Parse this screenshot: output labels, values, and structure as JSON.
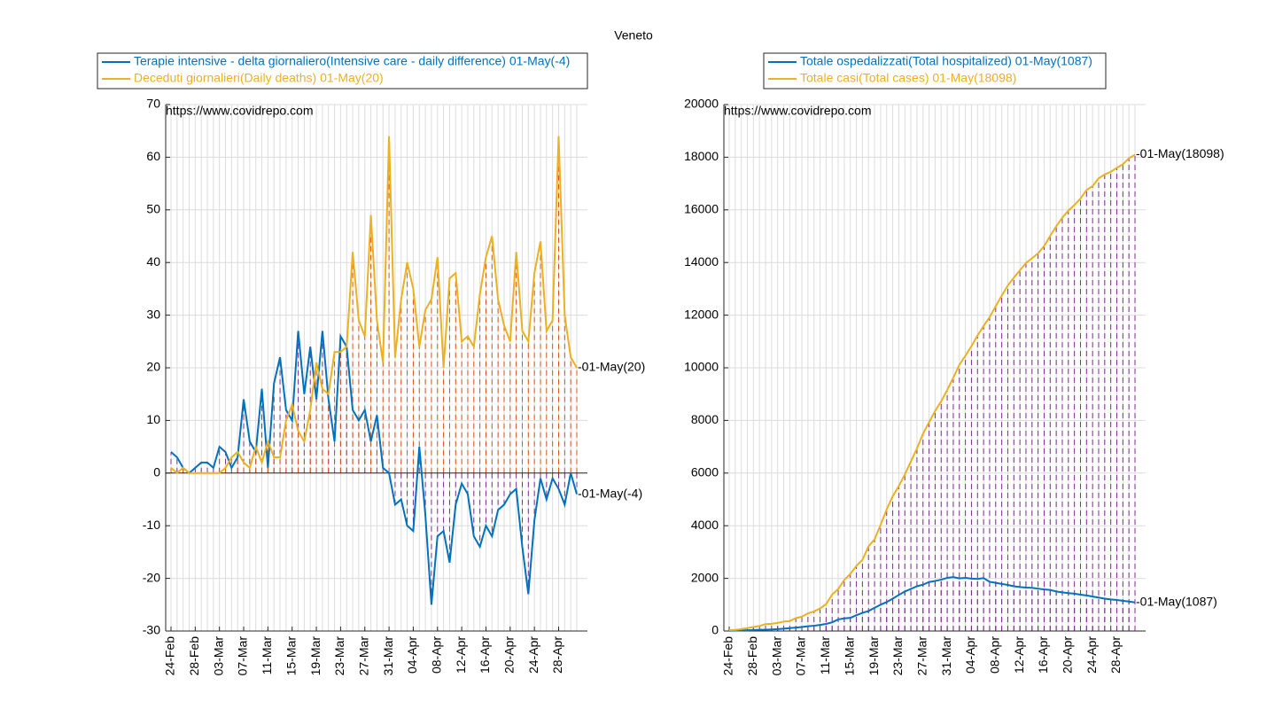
{
  "title": "Veneto",
  "chart_data": [
    {
      "type": "line",
      "source": "https://www.covidrepo.com",
      "categories": [
        "24-Feb",
        null,
        null,
        null,
        "28-Feb",
        null,
        null,
        null,
        "03-Mar",
        null,
        null,
        null,
        "07-Mar",
        null,
        null,
        null,
        "11-Mar",
        null,
        null,
        null,
        "15-Mar",
        null,
        null,
        null,
        "19-Mar",
        null,
        null,
        null,
        "23-Mar",
        null,
        null,
        null,
        "27-Mar",
        null,
        null,
        null,
        "31-Mar",
        null,
        null,
        null,
        "04-Apr",
        null,
        null,
        null,
        "08-Apr",
        null,
        null,
        null,
        "12-Apr",
        null,
        null,
        null,
        "16-Apr",
        null,
        null,
        null,
        "20-Apr",
        null,
        null,
        null,
        "24-Apr",
        null,
        null,
        null,
        "28-Apr",
        null,
        null,
        null
      ],
      "series": [
        {
          "name": "Terapie intensive - delta giornaliero(Intensive care - daily difference) 01-May(-4)",
          "color": "#0072bd",
          "stem_color": "#7e2f8e",
          "end_label": "-01-May(-4)",
          "values": [
            4,
            3,
            1,
            0,
            1,
            2,
            2,
            1,
            5,
            4,
            1,
            3,
            14,
            6,
            4,
            16,
            1,
            17,
            22,
            12,
            10,
            27,
            15,
            24,
            14,
            27,
            14,
            6,
            26,
            24,
            12,
            10,
            12,
            6,
            11,
            1,
            0,
            -6,
            -5,
            -10,
            -11,
            5,
            -8,
            -25,
            -12,
            -11,
            -17,
            -6,
            -2,
            -4,
            -12,
            -14,
            -10,
            -12,
            -7,
            -6,
            -4,
            -3,
            -14,
            -23,
            -9,
            -1,
            -5,
            -1,
            -3,
            -6,
            0,
            -4
          ]
        },
        {
          "name": "Deceduti giornalieri(Daily deaths) 01-May(20)",
          "color": "#edb120",
          "stem_color": "#d95319",
          "end_label": "-01-May(20)",
          "values": [
            1,
            0,
            1,
            0,
            0,
            0,
            0,
            0,
            0,
            1,
            3,
            4,
            2,
            1,
            5,
            2,
            6,
            3,
            3,
            10,
            13,
            8,
            6,
            12,
            21,
            16,
            15,
            23,
            23,
            24,
            42,
            29,
            26,
            49,
            29,
            21,
            64,
            22,
            33,
            40,
            35,
            24,
            31,
            33,
            41,
            20,
            37,
            38,
            25,
            26,
            24,
            34,
            41,
            45,
            33,
            28,
            25,
            42,
            27,
            25,
            38,
            44,
            27,
            29,
            64,
            30,
            22,
            20
          ]
        }
      ],
      "ylim": [
        -30,
        70
      ],
      "yticks": [
        -30,
        -20,
        -10,
        0,
        10,
        20,
        30,
        40,
        50,
        60,
        70
      ],
      "grid": true
    },
    {
      "type": "line",
      "source": "https://www.covidrepo.com",
      "categories": [
        "24-Feb",
        null,
        null,
        null,
        "28-Feb",
        null,
        null,
        null,
        "03-Mar",
        null,
        null,
        null,
        "07-Mar",
        null,
        null,
        null,
        "11-Mar",
        null,
        null,
        null,
        "15-Mar",
        null,
        null,
        null,
        "19-Mar",
        null,
        null,
        null,
        "23-Mar",
        null,
        null,
        null,
        "27-Mar",
        null,
        null,
        null,
        "31-Mar",
        null,
        null,
        null,
        "04-Apr",
        null,
        null,
        null,
        "08-Apr",
        null,
        null,
        null,
        "12-Apr",
        null,
        null,
        null,
        "16-Apr",
        null,
        null,
        null,
        "20-Apr",
        null,
        null,
        null,
        "24-Apr",
        null,
        null,
        null,
        "28-Apr",
        null,
        null,
        null
      ],
      "series": [
        {
          "name": "Totale ospedalizzati(Total hospitalized) 01-May(1087)",
          "color": "#0072bd",
          "stem_color": "#7e2f8e",
          "end_label": "-01-May(1087)",
          "values": [
            12,
            19,
            24,
            31,
            38,
            45,
            50,
            60,
            70,
            90,
            110,
            130,
            150,
            180,
            200,
            230,
            270,
            330,
            440,
            480,
            500,
            600,
            690,
            760,
            880,
            1000,
            1100,
            1230,
            1370,
            1500,
            1600,
            1700,
            1760,
            1860,
            1900,
            1950,
            2020,
            2050,
            2000,
            2020,
            1990,
            1980,
            2010,
            1870,
            1830,
            1790,
            1750,
            1700,
            1670,
            1650,
            1640,
            1610,
            1580,
            1560,
            1500,
            1470,
            1440,
            1420,
            1380,
            1350,
            1310,
            1270,
            1230,
            1200,
            1180,
            1150,
            1120,
            1087
          ]
        },
        {
          "name": "Totale casi(Total cases) 01-May(18098)",
          "color": "#edb120",
          "stem_color": "#7e2f8e",
          "end_label": "-01-May(18098)",
          "values": [
            33,
            43,
            71,
            111,
            151,
            191,
            263,
            273,
            307,
            360,
            380,
            488,
            543,
            670,
            744,
            856,
            1023,
            1384,
            1595,
            1937,
            2172,
            2473,
            2704,
            3214,
            3484,
            4031,
            4617,
            5122,
            5505,
            5948,
            6442,
            6935,
            7497,
            7930,
            8358,
            8724,
            9155,
            9625,
            10111,
            10457,
            10824,
            11226,
            11588,
            11925,
            12336,
            12741,
            13127,
            13421,
            13704,
            13981,
            14162,
            14351,
            14624,
            15013,
            15374,
            15704,
            15972,
            16186,
            16430,
            16755,
            16905,
            17195,
            17346,
            17445,
            17596,
            17731,
            17960,
            18098
          ]
        }
      ],
      "ylim": [
        0,
        20000
      ],
      "yticks": [
        0,
        2000,
        4000,
        6000,
        8000,
        10000,
        12000,
        14000,
        16000,
        18000,
        20000
      ],
      "grid": true
    }
  ]
}
